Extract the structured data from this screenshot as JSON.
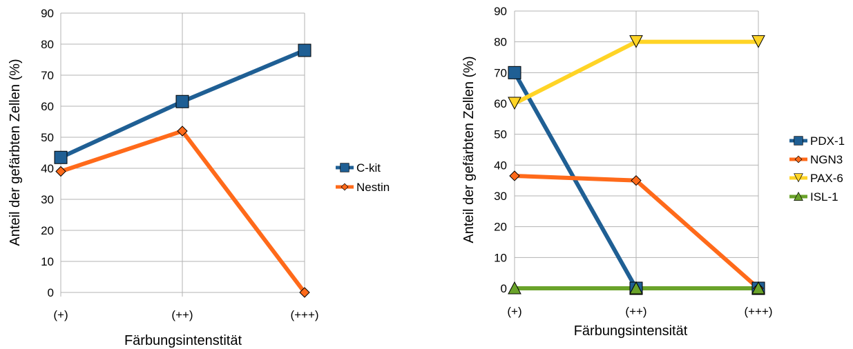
{
  "chart_data": [
    {
      "type": "line",
      "categories": [
        "(+)",
        "(++)",
        "(+++)"
      ],
      "xlabel": "Färbungsintenstität",
      "ylabel": "Anteil der gefärbten Zellen (%)",
      "ylim": [
        0,
        90
      ],
      "yticks": [
        "0",
        "10",
        "20",
        "30",
        "40",
        "50",
        "60",
        "70",
        "80",
        "90"
      ],
      "grid": true,
      "legend_position": "right",
      "series": [
        {
          "name": "C-kit",
          "values": [
            43.5,
            61.5,
            78
          ],
          "color": "#1f5f94",
          "marker": "square"
        },
        {
          "name": "Nestin",
          "values": [
            39,
            52,
            0
          ],
          "color": "#ff6a1a",
          "marker": "diamond"
        }
      ]
    },
    {
      "type": "line",
      "categories": [
        "(+)",
        "(++)",
        "(+++)"
      ],
      "xlabel": "Färbungsintensität",
      "ylabel": "Anteil der gefärbten Zellen (%)",
      "ylim": [
        0,
        90
      ],
      "yticks": [
        "0",
        "10",
        "20",
        "30",
        "40",
        "50",
        "60",
        "70",
        "80",
        "90"
      ],
      "grid": true,
      "legend_position": "right",
      "series": [
        {
          "name": "PDX-1",
          "values": [
            70,
            0,
            0
          ],
          "color": "#1f5f94",
          "marker": "square"
        },
        {
          "name": "NGN3",
          "values": [
            36.5,
            35,
            0
          ],
          "color": "#ff6a1a",
          "marker": "diamond"
        },
        {
          "name": "PAX-6",
          "values": [
            60,
            80,
            80
          ],
          "color": "#ffd426",
          "marker": "triangle-down"
        },
        {
          "name": "ISL-1",
          "values": [
            0,
            0,
            0
          ],
          "color": "#6aa32a",
          "marker": "triangle-up"
        }
      ]
    }
  ]
}
